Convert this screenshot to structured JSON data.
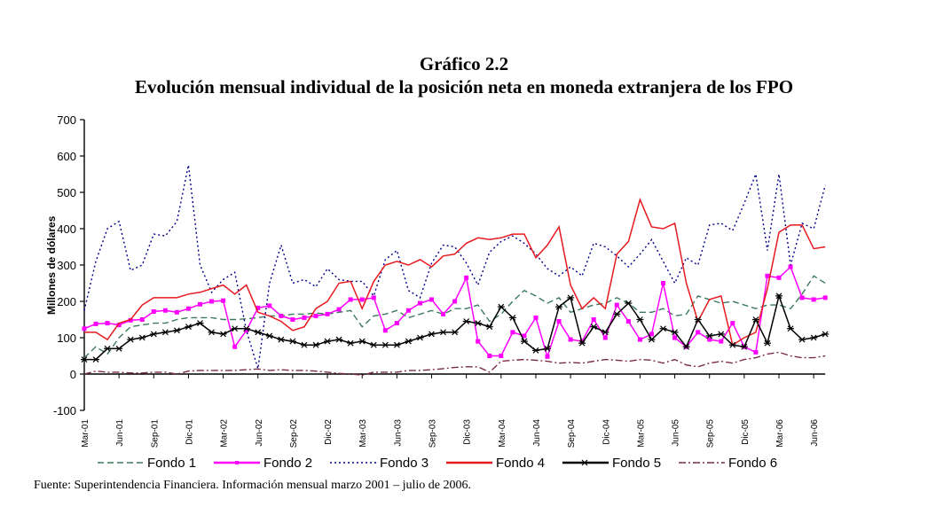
{
  "header": {
    "figure_number": "Gráfico 2.2",
    "title": "Evolución mensual individual de la posición neta en moneda extranjera de los FPO"
  },
  "source": "Fuente: Superintendencia Financiera. Información mensual marzo 2001 – julio de 2006.",
  "chart_data": {
    "type": "line",
    "title": "Evolución mensual individual de la posición neta en moneda extranjera de los FPO",
    "xlabel": "",
    "ylabel": "Millones de dólares",
    "ylim": [
      -100,
      700
    ],
    "yticks": [
      -100,
      0,
      100,
      200,
      300,
      400,
      500,
      600,
      700
    ],
    "grid": false,
    "legend_position": "bottom",
    "x_tick_labels": [
      "Mar-01",
      "Jun-01",
      "Sep-01",
      "Dic-01",
      "Mar-02",
      "Jun-02",
      "Sep-02",
      "Dic-02",
      "Mar-03",
      "Jun-03",
      "Sep-03",
      "Dic-03",
      "Mar-04",
      "Jun-04",
      "Sep-04",
      "Dic-04",
      "Mar-05",
      "Jun-05",
      "Sep-05",
      "Dic-05",
      "Mar-06",
      "Jun-06"
    ],
    "x_tick_every": 3,
    "n_points": 65,
    "x_start": "Mar-01",
    "x_end": "Jul-06",
    "series": [
      {
        "name": "Fondo 1",
        "color": "#3a7a5a",
        "style": "dashed",
        "marker": "none",
        "values": [
          45,
          75,
          55,
          100,
          130,
          135,
          140,
          140,
          150,
          155,
          155,
          155,
          150,
          150,
          152,
          155,
          160,
          160,
          165,
          165,
          168,
          165,
          170,
          175,
          130,
          160,
          165,
          175,
          155,
          165,
          175,
          165,
          180,
          180,
          190,
          145,
          165,
          200,
          230,
          215,
          195,
          210,
          170,
          180,
          190,
          195,
          210,
          195,
          170,
          170,
          180,
          160,
          165,
          215,
          205,
          195,
          200,
          190,
          180,
          190,
          190,
          180,
          220,
          270,
          250
        ]
      },
      {
        "name": "Fondo 2",
        "color": "#ff00ff",
        "style": "solid",
        "marker": "square",
        "values": [
          125,
          138,
          140,
          135,
          148,
          150,
          172,
          175,
          170,
          180,
          192,
          200,
          202,
          75,
          120,
          182,
          188,
          160,
          150,
          155,
          160,
          165,
          178,
          205,
          205,
          210,
          120,
          140,
          175,
          195,
          205,
          165,
          200,
          265,
          90,
          50,
          50,
          115,
          105,
          155,
          48,
          145,
          95,
          90,
          150,
          100,
          190,
          145,
          95,
          110,
          250,
          100,
          75,
          115,
          95,
          90,
          140,
          75,
          60,
          270,
          265,
          295,
          210,
          205,
          210
        ]
      },
      {
        "name": "Fondo 3",
        "color": "#00008b",
        "style": "dotted",
        "marker": "none",
        "values": [
          175,
          310,
          400,
          420,
          285,
          300,
          385,
          380,
          420,
          575,
          300,
          225,
          260,
          280,
          120,
          15,
          250,
          355,
          250,
          260,
          240,
          290,
          260,
          255,
          255,
          215,
          315,
          340,
          230,
          210,
          305,
          355,
          350,
          305,
          245,
          335,
          365,
          380,
          360,
          330,
          290,
          270,
          295,
          270,
          360,
          350,
          325,
          295,
          330,
          370,
          310,
          250,
          320,
          300,
          410,
          415,
          395,
          470,
          550,
          340,
          550,
          300,
          415,
          400,
          520
        ]
      },
      {
        "name": "Fondo 4",
        "color": "#e8191f",
        "style": "solid",
        "marker": "none",
        "values": [
          115,
          115,
          95,
          140,
          150,
          190,
          210,
          210,
          210,
          220,
          225,
          235,
          245,
          220,
          245,
          170,
          160,
          145,
          120,
          130,
          180,
          200,
          250,
          255,
          180,
          255,
          300,
          310,
          300,
          315,
          295,
          325,
          330,
          360,
          375,
          370,
          375,
          385,
          385,
          320,
          355,
          405,
          245,
          180,
          210,
          180,
          330,
          365,
          480,
          405,
          400,
          415,
          250,
          145,
          205,
          215,
          80,
          100,
          115,
          235,
          390,
          410,
          410,
          345,
          350
        ]
      },
      {
        "name": "Fondo 5",
        "color": "#000000",
        "style": "solid",
        "marker": "asterisk",
        "values": [
          40,
          40,
          70,
          70,
          95,
          100,
          110,
          115,
          120,
          130,
          140,
          115,
          110,
          125,
          125,
          115,
          105,
          95,
          90,
          80,
          80,
          90,
          95,
          85,
          90,
          80,
          80,
          80,
          90,
          100,
          110,
          115,
          115,
          145,
          140,
          130,
          185,
          155,
          90,
          65,
          70,
          185,
          210,
          85,
          130,
          115,
          165,
          195,
          150,
          95,
          125,
          115,
          75,
          150,
          105,
          110,
          80,
          75,
          150,
          85,
          215,
          125,
          95,
          100,
          110
        ]
      },
      {
        "name": "Fondo 6",
        "color": "#7b2a4f",
        "style": "dashdot",
        "marker": "none",
        "values": [
          0,
          8,
          5,
          5,
          3,
          3,
          5,
          5,
          0,
          8,
          10,
          10,
          10,
          10,
          12,
          14,
          10,
          12,
          10,
          10,
          8,
          5,
          2,
          0,
          -3,
          5,
          5,
          5,
          10,
          10,
          12,
          15,
          18,
          20,
          20,
          5,
          35,
          38,
          40,
          38,
          35,
          30,
          32,
          30,
          35,
          40,
          38,
          35,
          40,
          38,
          30,
          40,
          25,
          20,
          30,
          35,
          30,
          40,
          45,
          55,
          60,
          50,
          45,
          45,
          50
        ]
      }
    ]
  }
}
